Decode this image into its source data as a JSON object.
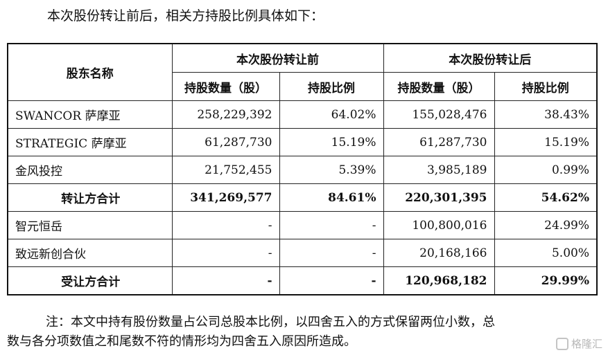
{
  "intro": "本次股份转让前后，相关方持股比例具体如下：",
  "table": {
    "col_name": "股东名称",
    "group_before": "本次股份转让前",
    "group_after": "本次股份转让后",
    "shares_header": "持股数量（股）",
    "ratio_header": "持股比例",
    "rows": [
      {
        "name": "SWANCOR 萨摩亚",
        "before_shares": "258,229,392",
        "before_ratio": "64.02%",
        "after_shares": "155,028,476",
        "after_ratio": "38.43%",
        "total": false
      },
      {
        "name": "STRATEGIC 萨摩亚",
        "before_shares": "61,287,730",
        "before_ratio": "15.19%",
        "after_shares": "61,287,730",
        "after_ratio": "15.19%",
        "total": false
      },
      {
        "name": "金风投控",
        "before_shares": "21,752,455",
        "before_ratio": "5.39%",
        "after_shares": "3,985,189",
        "after_ratio": "0.99%",
        "total": false
      },
      {
        "name": "转让方合计",
        "before_shares": "341,269,577",
        "before_ratio": "84.61%",
        "after_shares": "220,301,395",
        "after_ratio": "54.62%",
        "total": true
      },
      {
        "name": "智元恒岳",
        "before_shares": "-",
        "before_ratio": "-",
        "after_shares": "100,800,016",
        "after_ratio": "24.99%",
        "total": false
      },
      {
        "name": "致远新创合伙",
        "before_shares": "-",
        "before_ratio": "-",
        "after_shares": "20,168,166",
        "after_ratio": "5.00%",
        "total": false
      },
      {
        "name": "受让方合计",
        "before_shares": "-",
        "before_ratio": "-",
        "after_shares": "120,968,182",
        "after_ratio": "29.99%",
        "total": true
      }
    ]
  },
  "note_line1": "注：本文中持有股份数量占公司总股本比例，以四舍五入的方式保留两位小数，总",
  "note_line2": "数与各分项数值之和尾数不符的情形均为四舍五入原因所造成。",
  "watermark": "格隆汇"
}
